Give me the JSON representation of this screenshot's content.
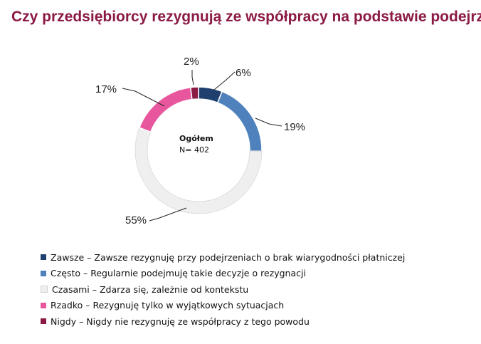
{
  "title": "Czy przedsiębiorcy rezygnują ze współpracy na podstawie podejrzeń",
  "chart_data": {
    "type": "pie",
    "variant": "donut",
    "center_label": {
      "title": "Ogółem",
      "subtitle": "N= 402"
    },
    "slices": [
      {
        "name": "Zawsze",
        "legend": "Zawsze – Zawsze rezygnuję przy podejrzeniach o brak wiarygodności płatniczej",
        "value": 6,
        "label": "6%",
        "color": "#1f3f6e"
      },
      {
        "name": "Często",
        "legend": "Często – Regularnie podejmuję takie decyzje o rezygnacji",
        "value": 19,
        "label": "19%",
        "color": "#4f81bd"
      },
      {
        "name": "Czasami",
        "legend": "Czasami – Zdarza się, zależnie od kontekstu",
        "value": 55,
        "label": "55%",
        "color": "#efefef"
      },
      {
        "name": "Rzadko",
        "legend": "Rzadko – Rezygnuję tylko w wyjątkowych sytuacjach",
        "value": 17,
        "label": "17%",
        "color": "#e8579e"
      },
      {
        "name": "Nigdy",
        "legend": "Nigdy – Nigdy nie rezygnuję ze współpracy z tego powodu",
        "value": 2,
        "label": "2%",
        "color": "#8b1a45"
      }
    ],
    "legend_position": "bottom-left"
  }
}
